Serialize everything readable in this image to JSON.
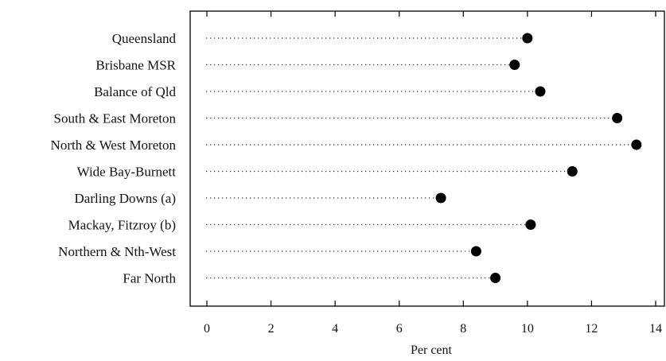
{
  "chart_data": {
    "type": "dot",
    "title": "",
    "xlabel": "Per cent",
    "ylabel": "",
    "xlim": [
      0,
      14
    ],
    "x_ticks": [
      "0",
      "2",
      "4",
      "6",
      "8",
      "10",
      "12",
      "14"
    ],
    "grid": false,
    "legend": "none",
    "categories": [
      "Queensland",
      "Brisbane MSR",
      "Balance of Qld",
      "South & East Moreton",
      "North & West Moreton",
      "Wide Bay-Burnett",
      "Darling Downs (a)",
      "Mackay, Fitzroy (b)",
      "Northern & Nth-West",
      "Far North"
    ],
    "values": [
      10.0,
      9.6,
      10.4,
      12.8,
      13.4,
      11.4,
      7.3,
      10.1,
      8.4,
      9.0
    ]
  },
  "colors": {
    "dot": "#000000",
    "leader": "#333333",
    "frame": "#000000"
  }
}
